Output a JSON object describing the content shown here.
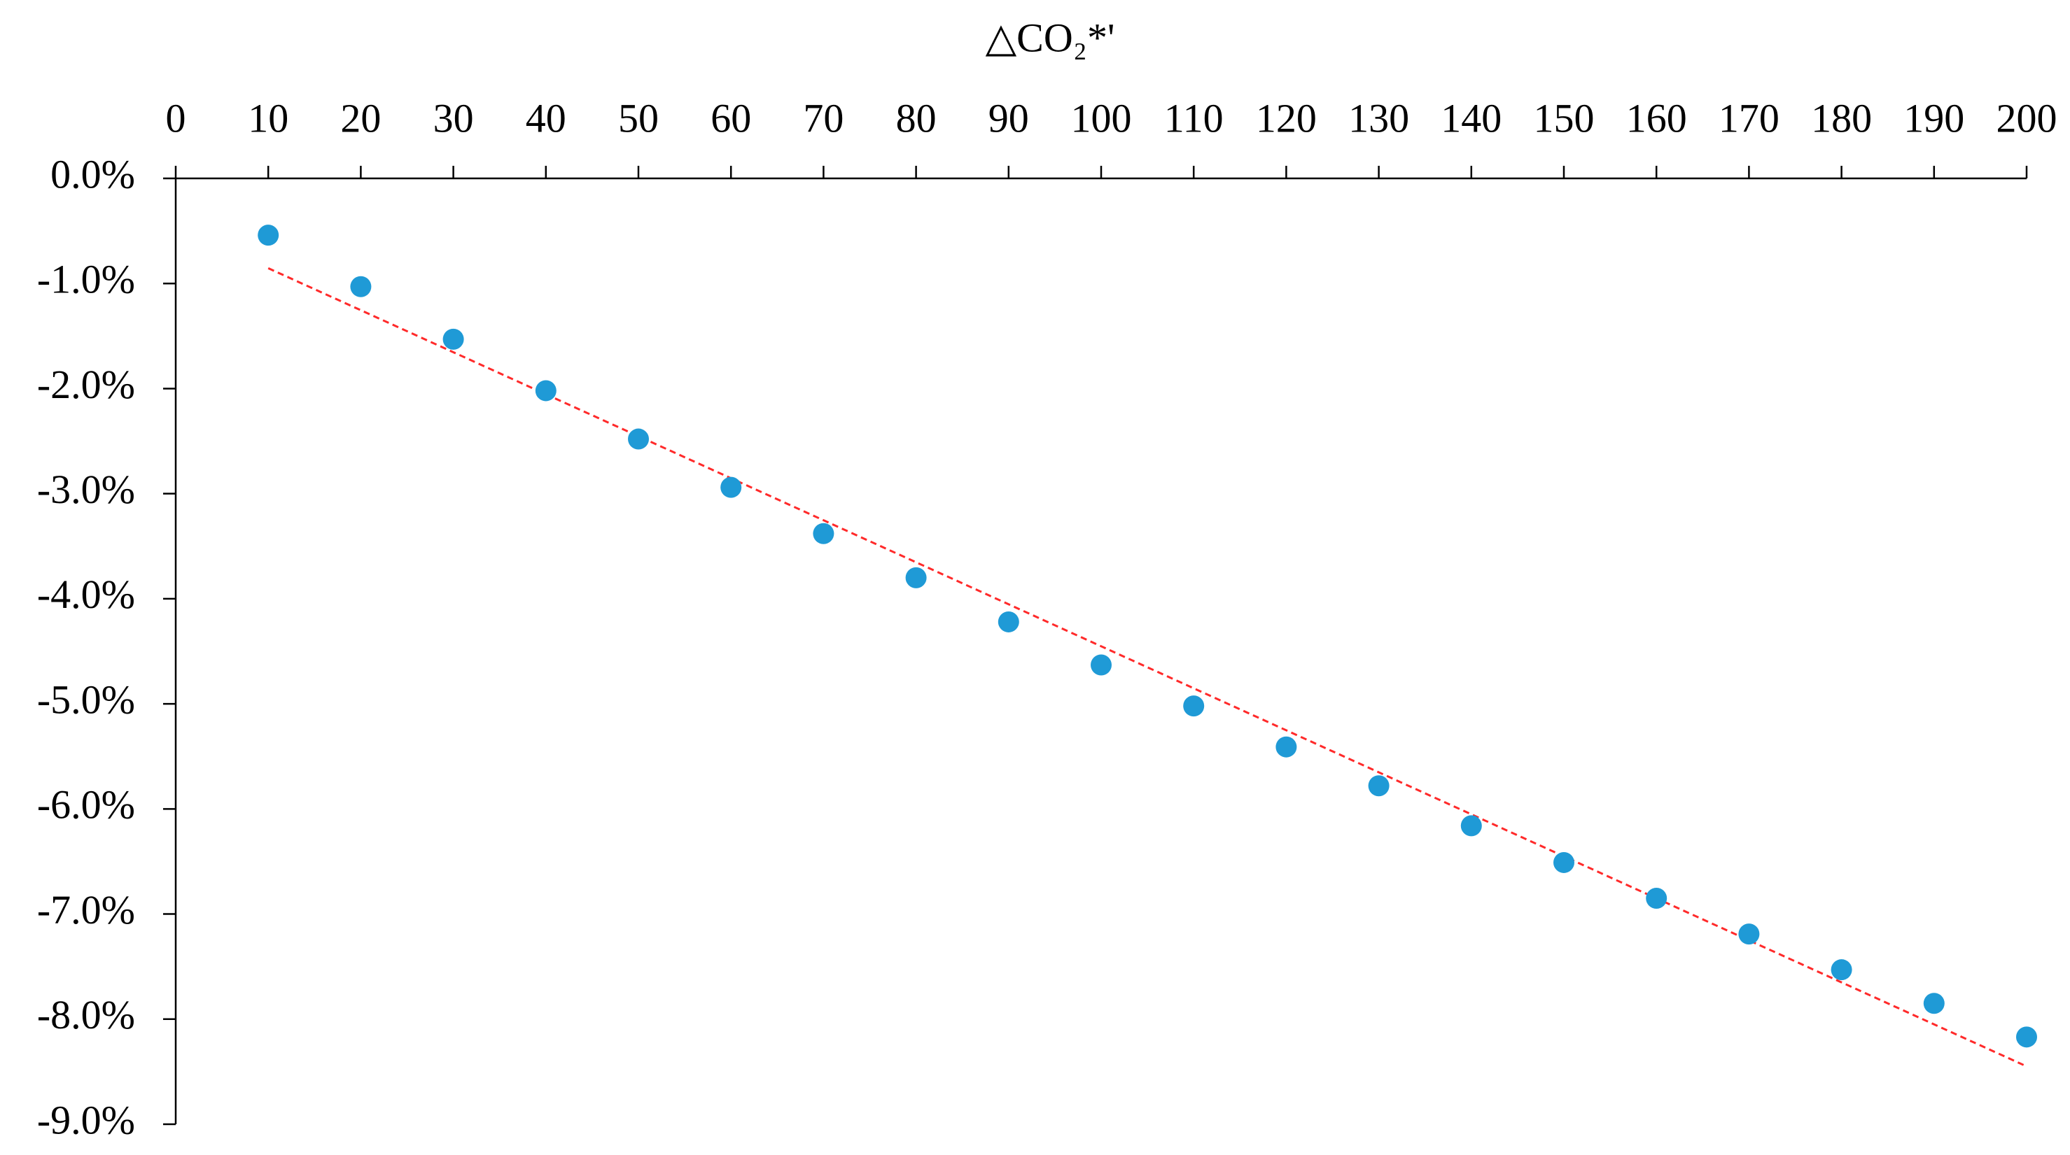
{
  "chart_data": {
    "type": "scatter",
    "x_label": "△CO₂*'",
    "x": [
      10,
      20,
      30,
      40,
      50,
      60,
      70,
      80,
      90,
      100,
      110,
      120,
      130,
      140,
      150,
      160,
      170,
      180,
      190,
      200
    ],
    "series": [
      {
        "color": "#1f9ad6",
        "values": [
          -0.54,
          -1.03,
          -1.53,
          -2.02,
          -2.48,
          -2.94,
          -3.38,
          -3.8,
          -4.22,
          -4.63,
          -5.02,
          -5.41,
          -5.78,
          -6.16,
          -6.51,
          -6.85,
          -7.19,
          -7.53,
          -7.85,
          -8.17
        ]
      }
    ],
    "trendline": {
      "kind": "linear",
      "color": "#ff2a2a",
      "dashed": true
    },
    "xlim": [
      0,
      200
    ],
    "xticks": [
      0,
      10,
      20,
      30,
      40,
      50,
      60,
      70,
      80,
      90,
      100,
      110,
      120,
      130,
      140,
      150,
      160,
      170,
      180,
      190,
      200
    ],
    "x_axis_position": "top",
    "ylim": [
      -9,
      0
    ],
    "yticks": [
      {
        "value": 0,
        "label": "0.0%"
      },
      {
        "value": -1,
        "label": "-1.0%"
      },
      {
        "value": -2,
        "label": "-2.0%"
      },
      {
        "value": -3,
        "label": "-3.0%"
      },
      {
        "value": -4,
        "label": "-4.0%"
      },
      {
        "value": -5,
        "label": "-5.0%"
      },
      {
        "value": -6,
        "label": "-6.0%"
      },
      {
        "value": -7,
        "label": "-7.0%"
      },
      {
        "value": -8,
        "label": "-8.0%"
      },
      {
        "value": -9,
        "label": "-9.0%"
      }
    ],
    "grid": false
  }
}
